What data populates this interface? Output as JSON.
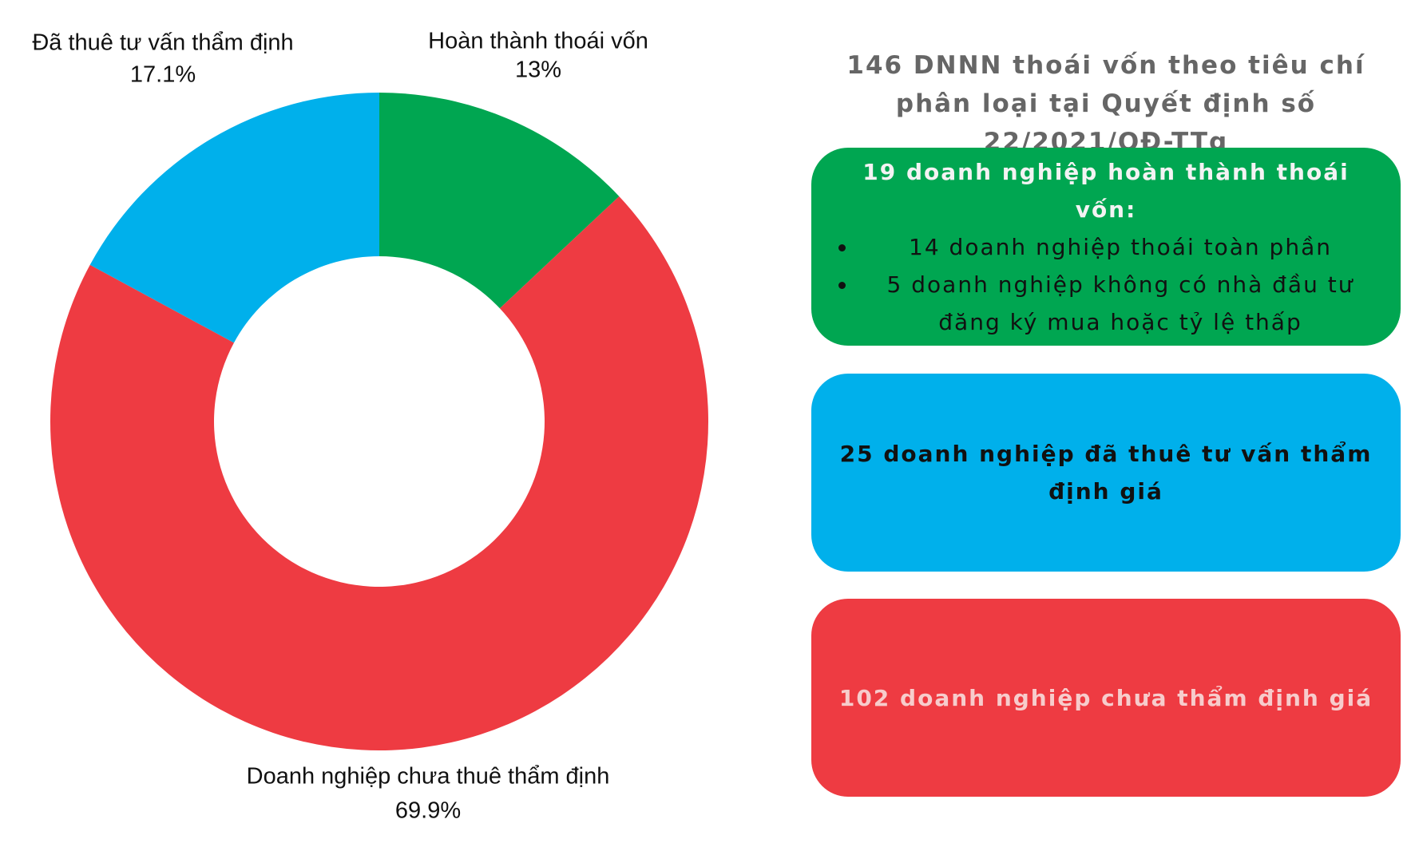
{
  "chart_data": {
    "type": "pie",
    "categories": [
      "Hoàn thành thoái vốn",
      "Doanh nghiệp chưa thuê thẩm định",
      "Đã thuê tư vấn thẩm định"
    ],
    "values": [
      13,
      69.9,
      17.1
    ],
    "value_labels": [
      "13%",
      "69.9%",
      "17.1%"
    ],
    "colors": [
      "#00a651",
      "#ee3b42",
      "#00b0eb"
    ],
    "donut": true
  },
  "info": {
    "title": "146 DNNN thoái vốn theo tiêu chí phân loại tại Quyết định số 22/2021/QĐ-TTg",
    "boxes": [
      {
        "heading": "19 doanh nghiệp hoàn thành thoái vốn:",
        "items": [
          "14 doanh nghiệp thoái toàn phần",
          "5 doanh nghiệp không có nhà đầu tư đăng ký mua hoặc tỷ lệ thấp"
        ]
      },
      {
        "heading": "25 doanh nghiệp đã thuê tư vấn thẩm định giá"
      },
      {
        "heading": "102 doanh nghiệp chưa thẩm định giá"
      }
    ]
  }
}
